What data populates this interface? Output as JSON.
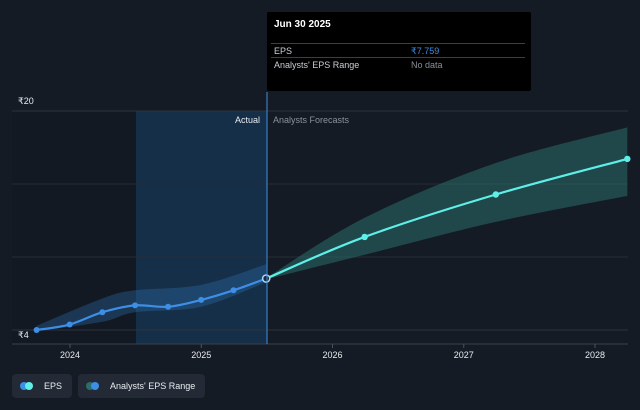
{
  "chart_data": {
    "type": "line",
    "currency_symbol": "₹",
    "y_axis": {
      "ylim": [
        4,
        20
      ],
      "tick_labels": [
        "₹20",
        "₹4"
      ]
    },
    "x_axis": {
      "tick_labels": [
        "2024",
        "2025",
        "2026",
        "2027",
        "2028"
      ]
    },
    "regions": {
      "actual_label": "Actual",
      "forecast_label": "Analysts Forecasts"
    },
    "series": [
      {
        "name": "EPS",
        "color": "#3d8ee6",
        "x": [
          "2023-09-30",
          "2023-12-31",
          "2024-03-31",
          "2024-06-30",
          "2024-09-30",
          "2024-12-31",
          "2025-03-31",
          "2025-06-30"
        ],
        "values": [
          4.0,
          4.4,
          5.3,
          5.8,
          5.7,
          6.2,
          6.9,
          7.759
        ]
      },
      {
        "name": "EPS Forecast",
        "color": "#5ef0e8",
        "x": [
          "2025-06-30",
          "2026-03-31",
          "2027-03-31",
          "2028-03-31"
        ],
        "values": [
          7.759,
          10.8,
          13.9,
          16.5
        ]
      },
      {
        "name": "Analysts' EPS Range",
        "color": "#2a6e6a",
        "x": [
          "2025-06-30",
          "2026-03-31",
          "2027-03-31",
          "2028-03-31"
        ],
        "low": [
          7.7,
          9.5,
          11.9,
          13.8
        ],
        "high": [
          7.8,
          12.2,
          16.2,
          18.8
        ]
      }
    ],
    "historical_band": {
      "x": [
        "2023-09-30",
        "2024-03-31",
        "2024-06-30",
        "2024-12-31",
        "2025-06-30"
      ],
      "low": [
        3.9,
        4.6,
        5.3,
        5.7,
        7.5
      ],
      "high": [
        4.3,
        6.3,
        6.9,
        7.3,
        8.8
      ]
    }
  },
  "tooltip": {
    "date": "Jun 30 2025",
    "rows": [
      {
        "label": "EPS",
        "value": "₹7.759"
      },
      {
        "label": "Analysts' EPS Range",
        "value": "No data"
      }
    ]
  },
  "legend": {
    "items": [
      {
        "label": "EPS",
        "color_a": "#3d8ee6",
        "color_b": "#5ef0e8"
      },
      {
        "label": "Analysts' EPS Range",
        "color_a": "#2a6e6a",
        "color_b": "#3d8ee6"
      }
    ]
  }
}
